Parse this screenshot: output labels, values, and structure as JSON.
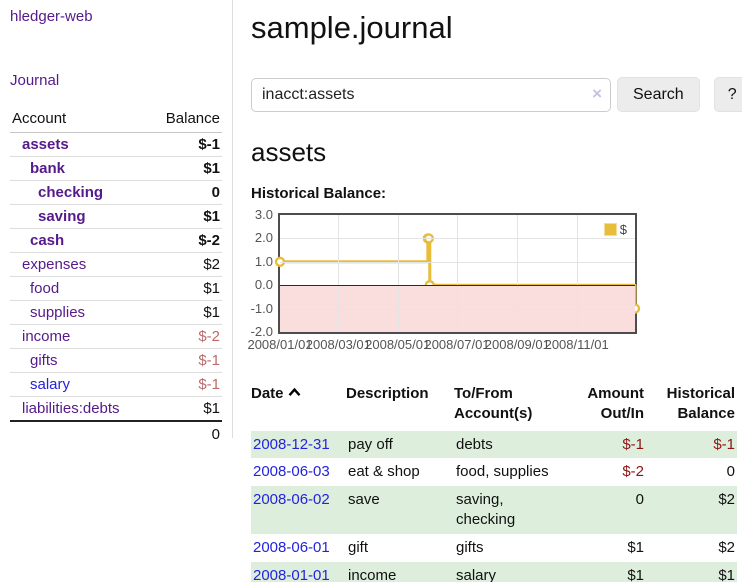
{
  "app": {
    "brand": "hledger-web"
  },
  "sidebar": {
    "journal_link": "Journal",
    "accounts_table": {
      "headers": {
        "account": "Account",
        "balance": "Balance"
      },
      "rows": [
        {
          "name": "assets",
          "balance": "$-1",
          "row_style": "bold",
          "acct_style": "lvl1",
          "link_style": "lnk-purple",
          "bal_style": "neg-strong"
        },
        {
          "name": "bank",
          "balance": "$1",
          "row_style": "bold",
          "acct_style": "lvl2",
          "link_style": "lnk-purple",
          "bal_style": ""
        },
        {
          "name": "checking",
          "balance": "0",
          "row_style": "bold",
          "acct_style": "lvl3",
          "link_style": "lnk-purple",
          "bal_style": ""
        },
        {
          "name": "saving",
          "balance": "$1",
          "row_style": "bold",
          "acct_style": "lvl3",
          "link_style": "lnk-purple",
          "bal_style": ""
        },
        {
          "name": "cash",
          "balance": "$-2",
          "row_style": "bold",
          "acct_style": "lvl2",
          "link_style": "lnk-purple",
          "bal_style": "neg-strong"
        },
        {
          "name": "expenses",
          "balance": "$2",
          "row_style": "plain",
          "acct_style": "lvl1",
          "link_style": "lnk-purple",
          "bal_style": ""
        },
        {
          "name": "food",
          "balance": "$1",
          "row_style": "plain",
          "acct_style": "lvl2",
          "link_style": "lnk-purple",
          "bal_style": ""
        },
        {
          "name": "supplies",
          "balance": "$1",
          "row_style": "plain",
          "acct_style": "lvl2",
          "link_style": "lnk-purple",
          "bal_style": ""
        },
        {
          "name": "income",
          "balance": "$-2",
          "row_style": "plain",
          "acct_style": "lvl1",
          "link_style": "lnk-purple",
          "bal_style": "neg-muted"
        },
        {
          "name": "gifts",
          "balance": "$-1",
          "row_style": "plain",
          "acct_style": "lvl2",
          "link_style": "lnk-purple",
          "bal_style": "neg-muted"
        },
        {
          "name": "salary",
          "balance": "$-1",
          "row_style": "plain",
          "acct_style": "lvl2",
          "link_style": "lnk-blue",
          "bal_style": "neg-muted"
        },
        {
          "name": "liabilities:debts",
          "balance": "$1",
          "row_style": "plain",
          "acct_style": "lvl1",
          "link_style": "lnk-purple",
          "bal_style": ""
        }
      ],
      "total": "0"
    }
  },
  "header": {
    "title": "sample.journal"
  },
  "search": {
    "value": "inacct:assets",
    "clear_icon": "×",
    "button_label": "Search",
    "help_label": "?"
  },
  "account_view": {
    "title": "assets",
    "chart_label": "Historical Balance:"
  },
  "chart_data": {
    "type": "line",
    "title": "Historical Balance",
    "x_start": "2008-01-01",
    "x_end": "2008-12-31",
    "ylim": [
      -2,
      3
    ],
    "y_ticks": [
      "3.0",
      "2.0",
      "1.0",
      "0.0",
      "-1.0",
      "-2.0"
    ],
    "x_ticks": [
      "2008/01/01",
      "2008/03/01",
      "2008/05/01",
      "2008/07/01",
      "2008/09/01",
      "2008/11/01"
    ],
    "grid": true,
    "legend_position": "top-right",
    "series": [
      {
        "name": "$",
        "color": "#e8bd3a",
        "steps": true,
        "marker": "hollow-circle",
        "points": [
          [
            "2008-01-01",
            1
          ],
          [
            "2008-06-01",
            2
          ],
          [
            "2008-06-02",
            2
          ],
          [
            "2008-06-03",
            0
          ],
          [
            "2008-12-31",
            -1
          ]
        ]
      }
    ],
    "negative_region_color": "#fadddd",
    "zero_line_color": "#8b0000"
  },
  "register_table": {
    "headers": {
      "date": "Date",
      "description": "Description",
      "accounts": "To/From Account(s)",
      "amount": "Amount Out/In",
      "balance": "Historical Balance"
    },
    "rows": [
      {
        "date": "2008-12-31",
        "description": "pay off",
        "accounts": "debts",
        "amount": "$-1",
        "balance": "$-1",
        "row_style": "odd",
        "amount_style": "neg",
        "balance_style": "neg"
      },
      {
        "date": "2008-06-03",
        "description": "eat & shop",
        "accounts": "food, supplies",
        "amount": "$-2",
        "balance": "0",
        "row_style": "even",
        "amount_style": "neg",
        "balance_style": ""
      },
      {
        "date": "2008-06-02",
        "description": "save",
        "accounts": "saving, checking",
        "amount": "0",
        "balance": "$2",
        "row_style": "odd",
        "amount_style": "",
        "balance_style": ""
      },
      {
        "date": "2008-06-01",
        "description": "gift",
        "accounts": "gifts",
        "amount": "$1",
        "balance": "$2",
        "row_style": "even",
        "amount_style": "",
        "balance_style": ""
      },
      {
        "date": "2008-01-01",
        "description": "income",
        "accounts": "salary",
        "amount": "$1",
        "balance": "$1",
        "row_style": "odd",
        "amount_style": "",
        "balance_style": ""
      }
    ]
  }
}
